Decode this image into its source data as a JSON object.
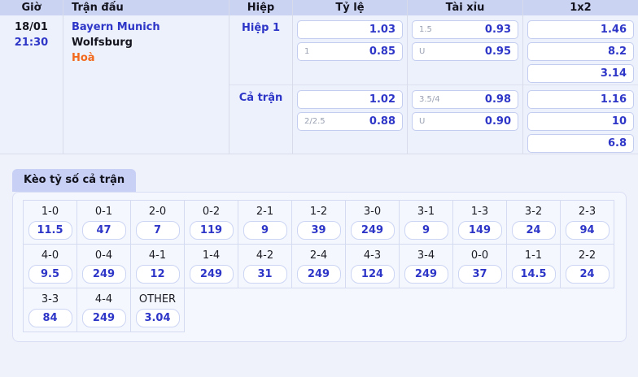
{
  "colors": {
    "accent_blue": "#2e36c8",
    "accent_orange": "#f2691d",
    "header_bg": "#cbd3f3",
    "tab_bg": "#c8d1f5",
    "page_bg": "#eff2fb"
  },
  "match_table": {
    "headers": {
      "time": "Giờ",
      "match": "Trận đấu",
      "period": "Hiệp",
      "handicap": "Tỷ lệ",
      "over_under": "Tài xỉu",
      "one_x_two": "1x2"
    },
    "row": {
      "date": "18/01",
      "time": "21:30",
      "home_team": "Bayern Munich",
      "away_team": "Wolfsburg",
      "draw_label": "Hoà",
      "sections": [
        {
          "period_label": "Hiệp 1",
          "handicap": [
            {
              "line": "",
              "odds": "1.03"
            },
            {
              "line": "1",
              "odds": "0.85"
            }
          ],
          "over_under": [
            {
              "line": "1.5",
              "odds": "0.93"
            },
            {
              "line": "U",
              "odds": "0.95"
            }
          ],
          "one_x_two": [
            "1.46",
            "8.2",
            "3.14"
          ]
        },
        {
          "period_label": "Cả trận",
          "handicap": [
            {
              "line": "",
              "odds": "1.02"
            },
            {
              "line": "2/2.5",
              "odds": "0.88"
            }
          ],
          "over_under": [
            {
              "line": "3.5/4",
              "odds": "0.98"
            },
            {
              "line": "U",
              "odds": "0.90"
            }
          ],
          "one_x_two": [
            "1.16",
            "10",
            "6.8"
          ]
        }
      ]
    }
  },
  "score_section": {
    "tab_label": "Kèo tỷ số cả trận",
    "rows": [
      [
        {
          "score": "1-0",
          "odds": "11.5"
        },
        {
          "score": "0-1",
          "odds": "47"
        },
        {
          "score": "2-0",
          "odds": "7"
        },
        {
          "score": "0-2",
          "odds": "119"
        },
        {
          "score": "2-1",
          "odds": "9"
        },
        {
          "score": "1-2",
          "odds": "39"
        },
        {
          "score": "3-0",
          "odds": "249"
        },
        {
          "score": "3-1",
          "odds": "9"
        },
        {
          "score": "1-3",
          "odds": "149"
        },
        {
          "score": "3-2",
          "odds": "24"
        },
        {
          "score": "2-3",
          "odds": "94"
        }
      ],
      [
        {
          "score": "4-0",
          "odds": "9.5"
        },
        {
          "score": "0-4",
          "odds": "249"
        },
        {
          "score": "4-1",
          "odds": "12"
        },
        {
          "score": "1-4",
          "odds": "249"
        },
        {
          "score": "4-2",
          "odds": "31"
        },
        {
          "score": "2-4",
          "odds": "249"
        },
        {
          "score": "4-3",
          "odds": "124"
        },
        {
          "score": "3-4",
          "odds": "249"
        },
        {
          "score": "0-0",
          "odds": "37"
        },
        {
          "score": "1-1",
          "odds": "14.5"
        },
        {
          "score": "2-2",
          "odds": "24"
        }
      ],
      [
        {
          "score": "3-3",
          "odds": "84"
        },
        {
          "score": "4-4",
          "odds": "249"
        },
        {
          "score": "OTHER",
          "odds": "3.04"
        }
      ]
    ]
  }
}
